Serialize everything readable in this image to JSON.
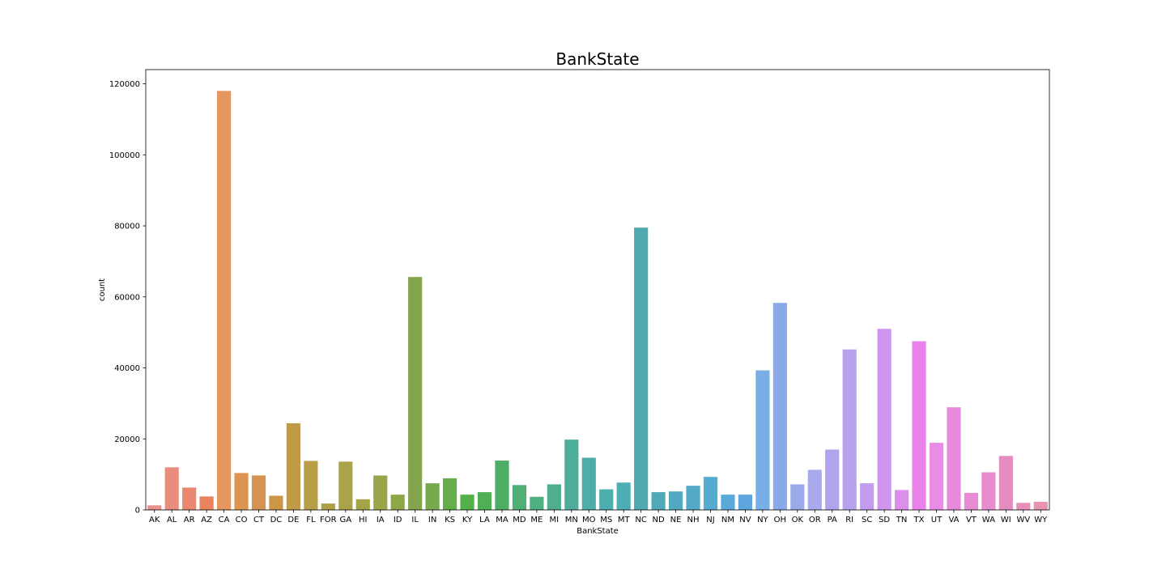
{
  "chart_data": {
    "type": "bar",
    "title": "BankState",
    "xlabel": "BankState",
    "ylabel": "count",
    "ylim": [
      0,
      124000
    ],
    "yticks": [
      0,
      20000,
      40000,
      60000,
      80000,
      100000,
      120000
    ],
    "ytick_labels": [
      "0",
      "20000",
      "40000",
      "60000",
      "80000",
      "100000",
      "120000"
    ],
    "categories": [
      "AK",
      "AL",
      "AR",
      "AZ",
      "CA",
      "CO",
      "CT",
      "DC",
      "DE",
      "FL",
      "FOR",
      "GA",
      "HI",
      "IA",
      "ID",
      "IL",
      "IN",
      "KS",
      "KY",
      "LA",
      "MA",
      "MD",
      "ME",
      "MI",
      "MN",
      "MO",
      "MS",
      "MT",
      "NC",
      "ND",
      "NE",
      "NH",
      "NJ",
      "NM",
      "NV",
      "NY",
      "OH",
      "OK",
      "OR",
      "PA",
      "RI",
      "SC",
      "SD",
      "TN",
      "TX",
      "UT",
      "VA",
      "VT",
      "WA",
      "WI",
      "WV",
      "WY"
    ],
    "values": [
      1300,
      12000,
      6300,
      3800,
      118000,
      10400,
      9700,
      4000,
      24400,
      13800,
      1800,
      13600,
      3000,
      9700,
      4300,
      65600,
      7500,
      8900,
      4300,
      5000,
      13900,
      7000,
      3700,
      7200,
      19800,
      14700,
      5800,
      7700,
      79500,
      5000,
      5200,
      6800,
      9300,
      4300,
      4300,
      39300,
      58300,
      7200,
      11300,
      17000,
      45200,
      7500,
      51000,
      5600,
      47500,
      18900,
      28900,
      4800,
      10600,
      15200,
      2000,
      2300
    ],
    "colors": [
      "#e8918e",
      "#e98d7f",
      "#e9886f",
      "#e8835e",
      "#e4975e",
      "#dd9451",
      "#d59353",
      "#cc9647",
      "#c19a47",
      "#b89e46",
      "#b09f47",
      "#a9a349",
      "#a3a347",
      "#9aa649",
      "#8fa847",
      "#84a54d",
      "#76a94c",
      "#65ad4a",
      "#54b049",
      "#4faf54",
      "#4eae66",
      "#4faf74",
      "#4fae82",
      "#4fae8e",
      "#4eae9c",
      "#4daea7",
      "#4daeae",
      "#4daeb5",
      "#4ea9b1",
      "#4fa9b8",
      "#51a9c0",
      "#52a9c8",
      "#56abd1",
      "#5aa9d8",
      "#5ea6dd",
      "#79aee6",
      "#8aa9e8",
      "#9aaae8",
      "#a8aaeb",
      "#b1a4ed",
      "#b6a3ec",
      "#c29ded",
      "#d095ec",
      "#dc8eea",
      "#ea83e9",
      "#e98ce6",
      "#e88adc",
      "#e88ad4",
      "#e78ccd",
      "#e58cc0",
      "#e88fb9",
      "#e892ad"
    ],
    "grid": false,
    "legend": "none"
  }
}
